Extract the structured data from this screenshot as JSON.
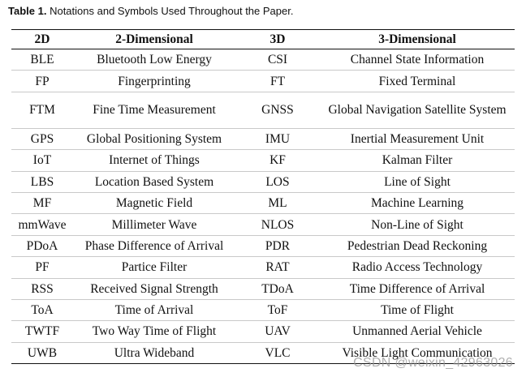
{
  "caption": {
    "label": "Table 1.",
    "text": "Notations and Symbols Used Throughout the Paper."
  },
  "table": {
    "headers": [
      "2D",
      "2-Dimensional",
      "3D",
      "3-Dimensional"
    ],
    "rows": [
      [
        "BLE",
        "Bluetooth Low Energy",
        "CSI",
        "Channel State Information"
      ],
      [
        "FP",
        "Fingerprinting",
        "FT",
        "Fixed Terminal"
      ],
      [
        "FTM",
        "Fine Time Measurement",
        "GNSS",
        "Global Navigation Satellite System"
      ],
      [
        "GPS",
        "Global Positioning System",
        "IMU",
        "Inertial Measurement Unit"
      ],
      [
        "IoT",
        "Internet of Things",
        "KF",
        "Kalman Filter"
      ],
      [
        "LBS",
        "Location Based System",
        "LOS",
        "Line of Sight"
      ],
      [
        "MF",
        "Magnetic Field",
        "ML",
        "Machine Learning"
      ],
      [
        "mmWave",
        "Millimeter Wave",
        "NLOS",
        "Non-Line of Sight"
      ],
      [
        "PDoA",
        "Phase Difference of Arrival",
        "PDR",
        "Pedestrian Dead Reckoning"
      ],
      [
        "PF",
        "Partice Filter",
        "RAT",
        "Radio Access Technology"
      ],
      [
        "RSS",
        "Received Signal Strength",
        "TDoA",
        "Time Difference of Arrival"
      ],
      [
        "ToA",
        "Time of Arrival",
        "ToF",
        "Time of Flight"
      ],
      [
        "TWTF",
        "Two Way Time of Flight",
        "UAV",
        "Unmanned Aerial Vehicle"
      ],
      [
        "UWB",
        "Ultra Wideband",
        "VLC",
        "Visible Light Communication"
      ]
    ]
  },
  "watermark": "CSDN @weixin_42963026"
}
